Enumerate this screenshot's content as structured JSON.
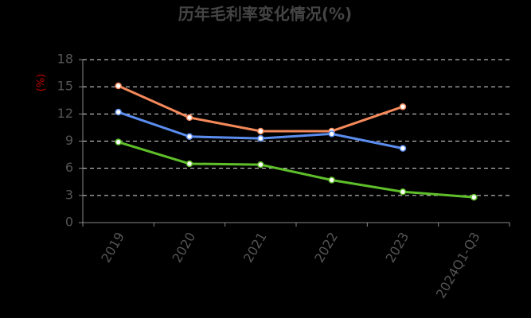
{
  "chart_data": {
    "type": "line",
    "title": "历年毛利率变化情况(%)",
    "y_label": "(%)",
    "categories": [
      "2019",
      "2020",
      "2021",
      "2022",
      "2023",
      "2024Q1-Q3"
    ],
    "series": [
      {
        "color": "#f4895a",
        "values": [
          15.1,
          11.6,
          10.1,
          10.1,
          12.8,
          null
        ]
      },
      {
        "color": "#5b8def",
        "values": [
          12.2,
          9.5,
          9.3,
          9.8,
          8.2,
          null
        ]
      },
      {
        "color": "#5fbf2a",
        "values": [
          8.9,
          6.5,
          6.4,
          4.7,
          3.4,
          2.8
        ]
      }
    ],
    "ylim": [
      0,
      18
    ],
    "yticks": [
      0,
      3,
      6,
      9,
      12,
      15,
      18
    ],
    "grid": true
  }
}
